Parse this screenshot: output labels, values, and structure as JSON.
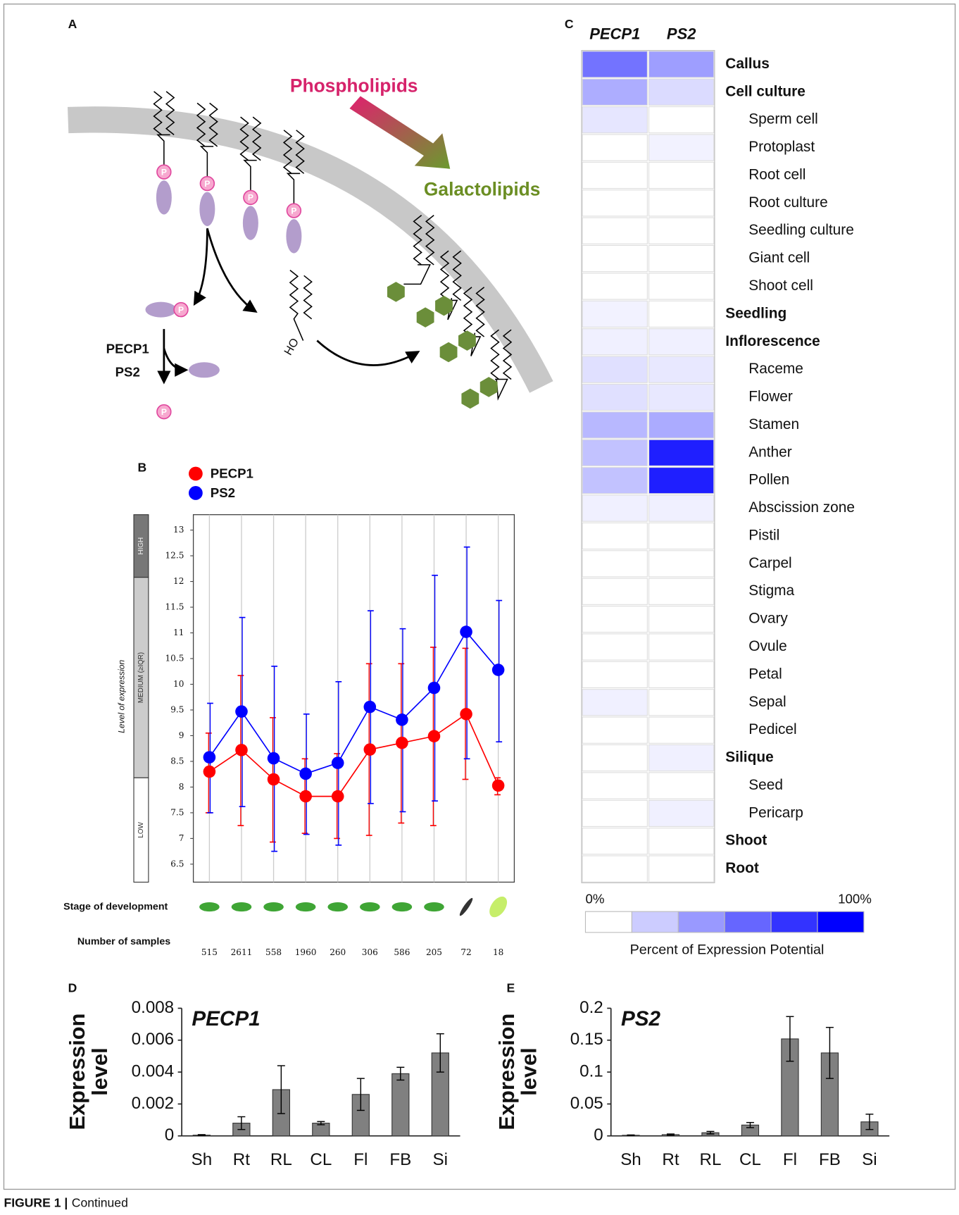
{
  "diagram": {
    "panel": "A",
    "phospholipids": "Phospholipids",
    "galactolipids": "Galactolipids",
    "enzymes": [
      "PECP1",
      "PS2"
    ],
    "phosphate": "P",
    "hydroxyl": "HO"
  },
  "chart_data": [
    {
      "type": "line",
      "panel": "B",
      "ylabel": "Level of expression",
      "categories": [
        null,
        null,
        null,
        null,
        null,
        null,
        null,
        null,
        null,
        null
      ],
      "ylim": [
        6.15,
        13.3
      ],
      "yticks": [
        6.5,
        7,
        7.5,
        8,
        8.5,
        9,
        9.5,
        10,
        10.5,
        11,
        11.5,
        12,
        12.5,
        13
      ],
      "grid": true,
      "series": [
        {
          "name": "PECP1",
          "color": "#ff0000",
          "values": [
            8.3,
            8.72,
            8.15,
            7.82,
            7.82,
            8.73,
            8.86,
            8.99,
            9.42,
            8.03
          ],
          "lower": [
            7.5,
            7.25,
            6.93,
            7.1,
            7.0,
            7.06,
            7.3,
            7.25,
            8.15,
            7.85
          ],
          "upper": [
            9.05,
            10.17,
            9.35,
            8.55,
            8.65,
            10.4,
            10.4,
            10.72,
            10.7,
            8.18
          ]
        },
        {
          "name": "PS2",
          "color": "#0000ff",
          "values": [
            8.58,
            9.47,
            8.56,
            8.26,
            8.47,
            9.56,
            9.31,
            9.93,
            11.02,
            10.28
          ],
          "lower": [
            7.5,
            7.62,
            6.75,
            7.08,
            6.87,
            7.68,
            7.52,
            7.73,
            8.55,
            8.88
          ],
          "upper": [
            9.63,
            11.3,
            10.35,
            9.42,
            10.05,
            11.43,
            11.08,
            12.12,
            12.67,
            11.63
          ]
        }
      ],
      "bands": [
        {
          "label": "HIGH",
          "from": 12.08,
          "to": 13.3,
          "color": "#777777"
        },
        {
          "label": "MEDIUM (≥IQR)",
          "from": 8.18,
          "to": 12.08,
          "color": "#cccccc"
        },
        {
          "label": "LOW",
          "from": 6.15,
          "to": 8.18,
          "color": "#ffffff"
        }
      ],
      "stage_label": "Stage of development",
      "samples_label": "Number of samples",
      "samples": [
        515,
        2611,
        558,
        1960,
        260,
        306,
        586,
        205,
        72,
        18
      ]
    },
    {
      "type": "heatmap",
      "panel": "C",
      "x": [
        "PECP1",
        "PS2"
      ],
      "y": [
        "Callus",
        "Cell culture",
        "Sperm cell",
        "Protoplast",
        "Root cell",
        "Root culture",
        "Seedling culture",
        "Giant cell",
        "Shoot cell",
        "Seedling",
        "Inflorescence",
        "Raceme",
        "Flower",
        "Stamen",
        "Anther",
        "Pollen",
        "Abscission zone",
        "Pistil",
        "Carpel",
        "Stigma",
        "Ovary",
        "Ovule",
        "Petal",
        "Sepal",
        "Pedicel",
        "Silique",
        "Seed",
        "Pericarp",
        "Shoot",
        "Root"
      ],
      "bold": [
        true,
        true,
        false,
        false,
        false,
        false,
        false,
        false,
        false,
        true,
        true,
        false,
        false,
        false,
        false,
        false,
        false,
        false,
        false,
        false,
        false,
        false,
        false,
        false,
        false,
        true,
        false,
        false,
        true,
        true
      ],
      "values": [
        [
          55,
          38
        ],
        [
          32,
          14
        ],
        [
          10,
          0
        ],
        [
          0,
          5
        ],
        [
          0,
          0
        ],
        [
          0,
          0
        ],
        [
          0,
          0
        ],
        [
          0,
          0
        ],
        [
          0,
          0
        ],
        [
          5,
          0
        ],
        [
          6,
          6
        ],
        [
          12,
          9
        ],
        [
          12,
          9
        ],
        [
          28,
          33
        ],
        [
          24,
          88
        ],
        [
          24,
          88
        ],
        [
          6,
          6
        ],
        [
          0,
          0
        ],
        [
          0,
          0
        ],
        [
          0,
          0
        ],
        [
          0,
          0
        ],
        [
          0,
          0
        ],
        [
          0,
          0
        ],
        [
          6,
          0
        ],
        [
          0,
          0
        ],
        [
          0,
          6
        ],
        [
          0,
          0
        ],
        [
          0,
          6
        ],
        [
          0,
          0
        ],
        [
          0,
          0
        ]
      ],
      "color": "#0000ff",
      "clim": [
        0,
        100
      ],
      "cticks": [
        {
          "value": 0,
          "label": "0%"
        },
        {
          "value": 100,
          "label": "100%"
        }
      ],
      "clabel": "Percent of Expression Potential"
    },
    {
      "type": "bar",
      "panel": "D",
      "title": "PECP1",
      "ylabel": [
        "Expression",
        "level"
      ],
      "categories": [
        "Sh",
        "Rt",
        "RL",
        "CL",
        "Fl",
        "FB",
        "Si"
      ],
      "values": [
        5e-05,
        0.0008,
        0.0029,
        0.0008,
        0.0026,
        0.0039,
        0.0052
      ],
      "errors": [
        3e-05,
        0.0004,
        0.0015,
        0.0001,
        0.001,
        0.0004,
        0.0012
      ],
      "color": "#808080",
      "ylim": [
        0,
        0.008
      ],
      "yticks": [
        0,
        0.002,
        0.004,
        0.006,
        0.008
      ]
    },
    {
      "type": "bar",
      "panel": "E",
      "title": "PS2",
      "ylabel": [
        "Expression",
        "level"
      ],
      "categories": [
        "Sh",
        "Rt",
        "RL",
        "CL",
        "Fl",
        "FB",
        "Si"
      ],
      "values": [
        0.001,
        0.002,
        0.005,
        0.017,
        0.152,
        0.13,
        0.022
      ],
      "errors": [
        0.0005,
        0.001,
        0.002,
        0.004,
        0.035,
        0.04,
        0.012
      ],
      "color": "#808080",
      "ylim": [
        0,
        0.2
      ],
      "yticks": [
        0,
        0.05,
        0.1,
        0.15,
        0.2
      ]
    }
  ],
  "caption": {
    "label": "FIGURE 1 |",
    "text": "Continued"
  }
}
